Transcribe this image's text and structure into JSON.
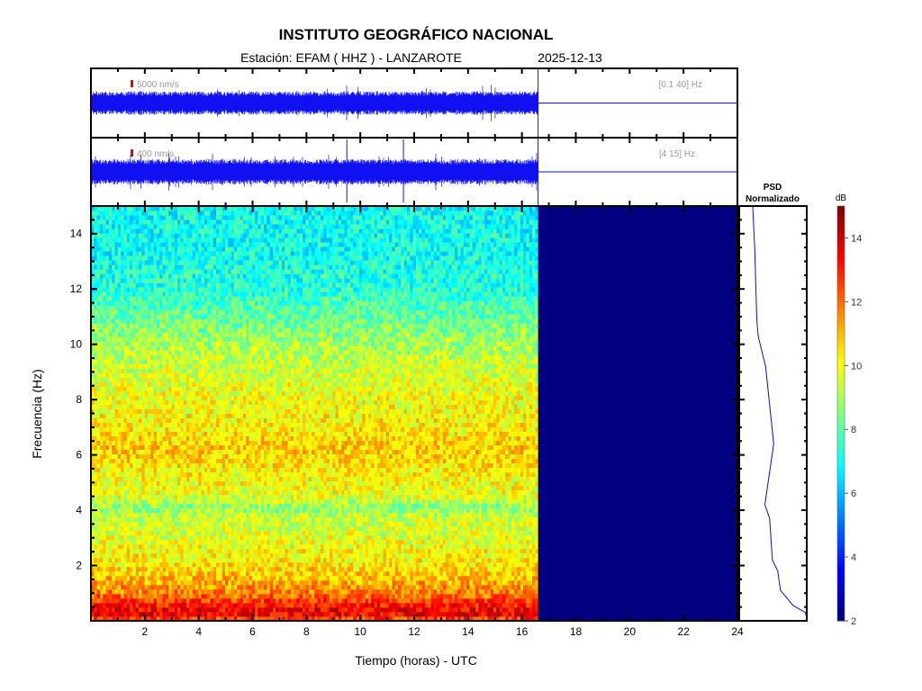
{
  "chart_data": {
    "type": "heatmap",
    "title": "INSTITUTO GEOGRÁFICO NACIONAL",
    "subtitle_station": "Estación:  EFAM ( HHZ ) - LANZAROTE",
    "subtitle_date": "2025-12-13",
    "xlabel": "Tiempo (horas) - UTC",
    "ylabel": "Frecuencia  (Hz)",
    "xlim": [
      0,
      24
    ],
    "ylim": [
      0,
      15
    ],
    "xticks": [
      "2",
      "4",
      "6",
      "8",
      "10",
      "12",
      "14",
      "16",
      "18",
      "20",
      "22",
      "24"
    ],
    "yticks": [
      "2",
      "4",
      "6",
      "8",
      "10",
      "12",
      "14"
    ],
    "data_end_hours": 16.6,
    "colorbar": {
      "label": "dB",
      "range": [
        2,
        15
      ],
      "ticks": [
        "2",
        "4",
        "6",
        "8",
        "10",
        "12",
        "14"
      ],
      "colormap": "jet"
    },
    "mean_db_profile": {
      "freq_hz": [
        0,
        0.3,
        0.6,
        1.0,
        1.5,
        2.0,
        3.0,
        3.8,
        4.1,
        4.5,
        5.5,
        6.2,
        7.0,
        8.0,
        9.0,
        10.0,
        11.0,
        12.0,
        13.0,
        14.0,
        15.0
      ],
      "db": [
        12,
        13.8,
        13,
        11.8,
        11,
        10.4,
        9.8,
        9.4,
        8.6,
        9.8,
        10.3,
        10.8,
        10.3,
        10.0,
        9.6,
        9.0,
        8.2,
        7.4,
        7.1,
        7.0,
        7.0
      ]
    },
    "empty_value_db": 2,
    "traces": [
      {
        "scale_label": "5000 nm/s",
        "filter_label": "[0.1 40] Hz"
      },
      {
        "scale_label": "400 nm/s",
        "filter_label": "[4 15] Hz",
        "spikes_hours": [
          9.5,
          11.6
        ]
      }
    ],
    "psd": {
      "title_line1": "PSD",
      "title_line2": "Normalizado",
      "freq_hz": [
        15,
        13.4,
        10.9,
        10.3,
        9.2,
        6.4,
        4.2,
        3.7,
        2.2,
        1.8,
        1.1,
        0.55,
        0.3,
        0.1
      ],
      "normalized": [
        0.2,
        0.23,
        0.26,
        0.28,
        0.39,
        0.51,
        0.38,
        0.45,
        0.49,
        0.57,
        0.61,
        0.8,
        0.98,
        1.0
      ]
    }
  }
}
